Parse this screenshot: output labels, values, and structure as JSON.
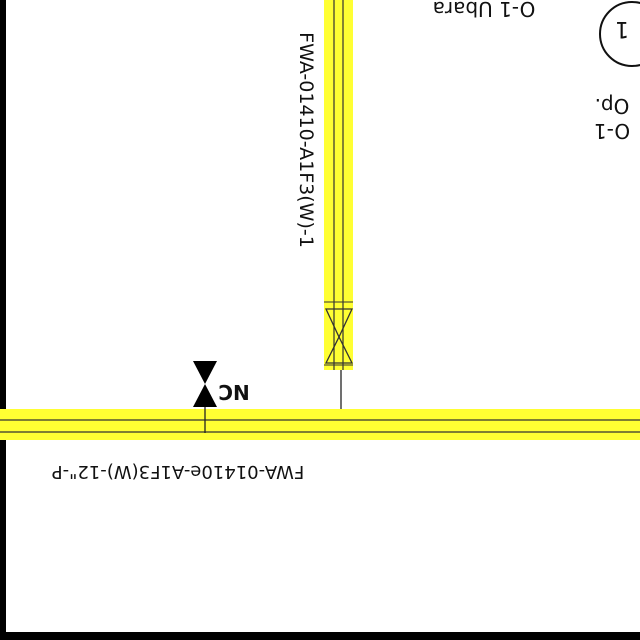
{
  "colors": {
    "highlight": "#ffff33",
    "line": "#222222",
    "frame": "#000000",
    "background": "#ffffff"
  },
  "labels": {
    "vertical_line_tag": "FWA-01410-A1F3(W)-1",
    "horizontal_line_tag": "FWA-01410e-A1F3(W)-12\"-P",
    "valve_state": "NC",
    "top_text": "O-1 Ubara",
    "side_text_1": "Op.",
    "side_text_2": "O-1",
    "instrument_tag": "1"
  }
}
